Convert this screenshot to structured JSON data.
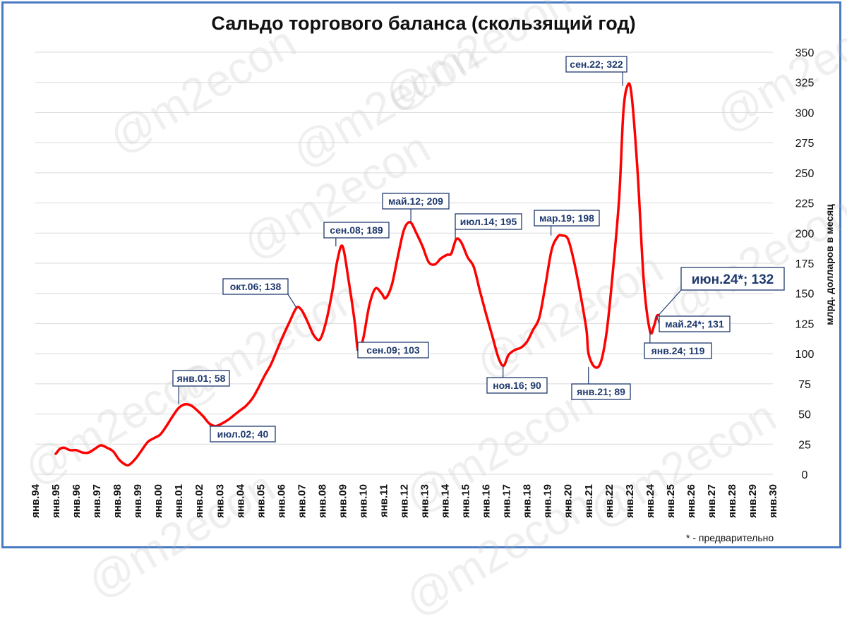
{
  "watermark": "@m2econ",
  "footnote": "* - предварительно",
  "colors": {
    "line": "#ff0000",
    "border": "#4a7cc4",
    "callout_border": "#1f3a6e",
    "callout_text": "#1f3a6e",
    "grid": "#d9d9d9"
  },
  "chart_data": {
    "type": "line",
    "title": "Сальдо торгового баланса (скользящий год)",
    "ylabel": "млрд. долларов в месяц",
    "xlabel": "",
    "ylim": [
      0,
      350
    ],
    "yticks": [
      0,
      25,
      50,
      75,
      100,
      125,
      150,
      175,
      200,
      225,
      250,
      275,
      300,
      325,
      350
    ],
    "y_axis_side": "right",
    "grid": "horizontal",
    "xlim": [
      1994,
      2030
    ],
    "x_tick_labels": [
      "янв.94",
      "янв.95",
      "янв.96",
      "янв.97",
      "янв.98",
      "янв.99",
      "янв.00",
      "янв.01",
      "янв.02",
      "янв.03",
      "янв.04",
      "янв.05",
      "янв.06",
      "янв.07",
      "янв.08",
      "янв.09",
      "янв.10",
      "янв.11",
      "янв.12",
      "янв.13",
      "янв.14",
      "янв.15",
      "янв.16",
      "янв.17",
      "янв.18",
      "янв.19",
      "янв.20",
      "янв.21",
      "янв.22",
      "янв.23",
      "янв.24",
      "янв.25",
      "янв.26",
      "янв.27",
      "янв.28",
      "янв.29",
      "янв.30"
    ],
    "series": [
      {
        "color": "#ff0000",
        "x": [
          1995.0,
          1995.2,
          1995.4,
          1995.7,
          1996.0,
          1996.3,
          1996.6,
          1996.9,
          1997.2,
          1997.5,
          1997.8,
          1998.1,
          1998.4,
          1998.6,
          1998.9,
          1999.2,
          1999.5,
          1999.8,
          2000.1,
          2000.4,
          2000.7,
          2001.0,
          2001.3,
          2001.6,
          2001.9,
          2002.2,
          2002.5,
          2002.8,
          2003.1,
          2003.4,
          2003.7,
          2004.0,
          2004.3,
          2004.6,
          2004.9,
          2005.2,
          2005.5,
          2005.8,
          2006.1,
          2006.4,
          2006.75,
          2007.0,
          2007.3,
          2007.6,
          2007.9,
          2008.2,
          2008.5,
          2008.75,
          2009.0,
          2009.3,
          2009.6,
          2009.75,
          2010.0,
          2010.3,
          2010.6,
          2010.9,
          2011.1,
          2011.4,
          2011.7,
          2012.0,
          2012.3,
          2012.6,
          2012.9,
          2013.2,
          2013.5,
          2013.8,
          2014.1,
          2014.3,
          2014.55,
          2014.8,
          2015.1,
          2015.4,
          2015.7,
          2016.0,
          2016.3,
          2016.6,
          2016.85,
          2017.1,
          2017.4,
          2017.7,
          2018.0,
          2018.3,
          2018.6,
          2018.9,
          2019.2,
          2019.5,
          2019.7,
          2020.0,
          2020.3,
          2020.6,
          2020.9,
          2021.0,
          2021.3,
          2021.6,
          2021.9,
          2022.2,
          2022.5,
          2022.7,
          2022.9,
          2023.1,
          2023.4,
          2023.7,
          2024.0,
          2024.2,
          2024.33,
          2024.42
        ],
        "y": [
          17,
          21,
          22,
          20,
          20,
          18,
          18,
          21,
          24,
          22,
          19,
          12,
          8,
          8,
          13,
          20,
          27,
          30,
          33,
          40,
          48,
          55,
          58,
          57,
          53,
          48,
          42,
          40,
          42,
          45,
          49,
          53,
          57,
          63,
          72,
          82,
          91,
          103,
          115,
          126,
          138,
          136,
          126,
          115,
          112,
          127,
          152,
          178,
          189,
          160,
          125,
          103,
          112,
          140,
          154,
          150,
          146,
          157,
          181,
          203,
          209,
          200,
          189,
          176,
          174,
          179,
          182,
          183,
          195,
          192,
          180,
          172,
          152,
          133,
          115,
          97,
          90,
          99,
          103,
          105,
          110,
          120,
          130,
          157,
          186,
          197,
          198,
          195,
          176,
          150,
          120,
          100,
          89,
          93,
          120,
          170,
          230,
          300,
          322,
          315,
          250,
          160,
          119,
          123,
          131,
          132
        ]
      }
    ],
    "annotations": [
      {
        "text": "янв.01; 58",
        "x": 2001.0,
        "y": 58
      },
      {
        "text": "июл.02; 40",
        "x": 2002.5,
        "y": 40
      },
      {
        "text": "окт.06; 138",
        "x": 2006.75,
        "y": 138
      },
      {
        "text": "сен.08; 189",
        "x": 2008.67,
        "y": 189
      },
      {
        "text": "сен.09; 103",
        "x": 2009.67,
        "y": 103
      },
      {
        "text": "май.12; 209",
        "x": 2012.33,
        "y": 209
      },
      {
        "text": "июл.14; 195",
        "x": 2014.5,
        "y": 195
      },
      {
        "text": "ноя.16; 90",
        "x": 2016.83,
        "y": 90
      },
      {
        "text": "мар.19; 198",
        "x": 2019.17,
        "y": 198
      },
      {
        "text": "янв.21; 89",
        "x": 2021.0,
        "y": 89
      },
      {
        "text": "сен.22; 322",
        "x": 2022.67,
        "y": 322
      },
      {
        "text": "янв.24; 119",
        "x": 2024.0,
        "y": 119
      },
      {
        "text": "май.24*; 131",
        "x": 2024.33,
        "y": 131
      },
      {
        "text": "июн.24*; 132",
        "x": 2024.42,
        "y": 132
      }
    ]
  }
}
